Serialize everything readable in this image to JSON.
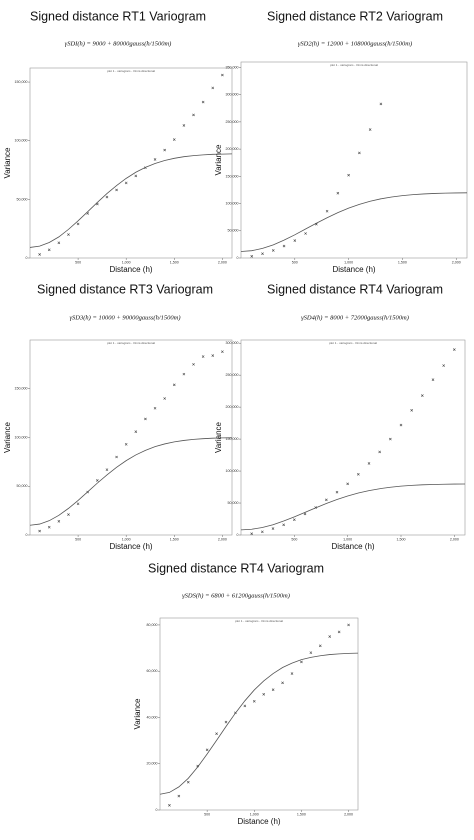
{
  "chart_data": [
    {
      "type": "scatter",
      "title": "Signed distance RT1 Variogram",
      "formula": "γSDI(h) = 9000 + 80000gauss(h/1500m)",
      "subtitle": "plot 1 - variogram - Omni-directional",
      "xlabel": "Distance (h)",
      "ylabel": "Variance",
      "xlim": [
        0,
        2100
      ],
      "ylim": [
        0,
        162000
      ],
      "xticks": [
        500,
        {
          "value": 1000,
          "label": "1,000"
        },
        {
          "value": 1500,
          "label": "1,500"
        },
        {
          "value": 2000,
          "label": "2,000"
        }
      ],
      "yticks": [
        0,
        {
          "value": 50000,
          "label": "50,000"
        },
        {
          "value": 100000,
          "label": "100,000"
        },
        {
          "value": 150000,
          "label": "150,000"
        }
      ],
      "series": [
        {
          "style": "markers",
          "color": "#444444",
          "x": [
            100,
            200,
            300,
            400,
            500,
            600,
            700,
            800,
            900,
            1000,
            1100,
            1200,
            1300,
            1400,
            1500,
            1600,
            1700,
            1800,
            1900,
            2000
          ],
          "values": [
            3000,
            7000,
            13000,
            20000,
            29000,
            38000,
            46000,
            52000,
            58000,
            64000,
            70000,
            77000,
            84000,
            92000,
            101000,
            113000,
            122000,
            133000,
            145000,
            156000
          ]
        },
        {
          "style": "line",
          "color": "#555555",
          "x": [
            0,
            100,
            200,
            300,
            400,
            500,
            600,
            700,
            800,
            900,
            1000,
            1100,
            1200,
            1300,
            1400,
            1500,
            1600,
            1700,
            1800,
            1900,
            2000,
            2100
          ],
          "values": [
            9000,
            10100,
            13200,
            18000,
            24400,
            31700,
            39500,
            47400,
            54900,
            61800,
            67900,
            73100,
            77300,
            80600,
            83100,
            85000,
            86400,
            87300,
            87900,
            88400,
            88600,
            88800
          ]
        }
      ]
    },
    {
      "type": "scatter",
      "title": "Signed distance RT2 Variogram",
      "formula": "γSD2(h) = 12000 + 108000gauss(h/1500m)",
      "subtitle": "plot 1 - variogram - Omni-directional",
      "xlabel": "Distance (h)",
      "ylabel": "Variance",
      "xlim": [
        0,
        2100
      ],
      "ylim": [
        0,
        360000
      ],
      "xticks": [
        500,
        {
          "value": 1000,
          "label": "1,000"
        },
        {
          "value": 1500,
          "label": "1,500"
        },
        {
          "value": 2000,
          "label": "2,000"
        }
      ],
      "yticks": [
        0,
        {
          "value": 50000,
          "label": "50,000"
        },
        {
          "value": 100000,
          "label": "100,000"
        },
        {
          "value": 150000,
          "label": "150,000"
        },
        {
          "value": 200000,
          "label": "200,000"
        },
        {
          "value": 250000,
          "label": "250,000"
        },
        {
          "value": 300000,
          "label": "300,000"
        },
        {
          "value": 350000,
          "label": "350,000"
        }
      ],
      "series": [
        {
          "style": "markers",
          "color": "#444444",
          "x": [
            100,
            200,
            300,
            400,
            500,
            600,
            700,
            800,
            900,
            1000,
            1100,
            1200,
            1300
          ],
          "values": [
            3000,
            8000,
            14000,
            22000,
            32000,
            45000,
            62000,
            86000,
            119000,
            152000,
            193000,
            236000,
            283000
          ]
        },
        {
          "style": "line",
          "color": "#555555",
          "x": [
            0,
            100,
            200,
            300,
            400,
            500,
            600,
            700,
            800,
            900,
            1000,
            1100,
            1200,
            1300,
            1400,
            1500,
            1600,
            1700,
            1800,
            1900,
            2000,
            2100
          ],
          "values": [
            12000,
            13400,
            17600,
            24200,
            32800,
            42600,
            53200,
            63800,
            74000,
            83300,
            91500,
            98500,
            104200,
            108700,
            112100,
            114600,
            116400,
            117700,
            118600,
            119100,
            119500,
            119700
          ]
        }
      ]
    },
    {
      "type": "scatter",
      "title": "Signed distance RT3 Variogram",
      "formula": "γSD3(h) = 10000 + 90000gauss(h/1500m)",
      "subtitle": "plot 1 - variogram - Omni-directional",
      "xlabel": "Distance (h)",
      "ylabel": "Variance",
      "xlim": [
        0,
        2100
      ],
      "ylim": [
        0,
        200000
      ],
      "xticks": [
        500,
        {
          "value": 1000,
          "label": "1,000"
        },
        {
          "value": 1500,
          "label": "1,500"
        },
        {
          "value": 2000,
          "label": "2,000"
        }
      ],
      "yticks": [
        0,
        {
          "value": 50000,
          "label": "50,000"
        },
        {
          "value": 100000,
          "label": "100,000"
        },
        {
          "value": 150000,
          "label": "150,000"
        }
      ],
      "series": [
        {
          "style": "markers",
          "color": "#444444",
          "x": [
            100,
            200,
            300,
            400,
            500,
            600,
            700,
            800,
            900,
            1000,
            1100,
            1200,
            1300,
            1400,
            1500,
            1600,
            1700,
            1800,
            1900,
            2000
          ],
          "values": [
            4000,
            8000,
            14000,
            21000,
            32000,
            44000,
            56000,
            67000,
            80000,
            93000,
            106000,
            119000,
            130000,
            140000,
            154000,
            165000,
            175000,
            183000,
            184000,
            188000
          ]
        },
        {
          "style": "line",
          "color": "#555555",
          "x": [
            0,
            100,
            200,
            300,
            400,
            500,
            600,
            700,
            800,
            900,
            1000,
            1100,
            1200,
            1300,
            1400,
            1500,
            1600,
            1700,
            1800,
            1900,
            2000,
            2100
          ],
          "values": [
            10000,
            11200,
            14700,
            20200,
            27300,
            35500,
            44300,
            53200,
            61600,
            69400,
            76300,
            82100,
            86800,
            90600,
            93400,
            95500,
            97000,
            98100,
            98800,
            99300,
            99600,
            99700
          ]
        }
      ]
    },
    {
      "type": "scatter",
      "title": "Signed distance RT4 Variogram",
      "formula": "γSD4(h) = 8000 + 72000gauss(h/1500m)",
      "subtitle": "plot 1 - variogram - Omni-directional",
      "xlabel": "Distance (h)",
      "ylabel": "Variance",
      "xlim": [
        0,
        2100
      ],
      "ylim": [
        0,
        305000
      ],
      "xticks": [
        500,
        {
          "value": 1000,
          "label": "1,000"
        },
        {
          "value": 1500,
          "label": "1,500"
        },
        {
          "value": 2000,
          "label": "2,000"
        }
      ],
      "yticks": [
        0,
        {
          "value": 50000,
          "label": "50,000"
        },
        {
          "value": 100000,
          "label": "100,000"
        },
        {
          "value": 150000,
          "label": "150,000"
        },
        {
          "value": 200000,
          "label": "200,000"
        },
        {
          "value": 250000,
          "label": "250,000"
        },
        {
          "value": 300000,
          "label": "300,000"
        }
      ],
      "series": [
        {
          "style": "markers",
          "color": "#444444",
          "x": [
            100,
            200,
            300,
            400,
            500,
            600,
            700,
            800,
            900,
            1000,
            1100,
            1200,
            1300,
            1400,
            1500,
            1600,
            1700,
            1800,
            1900,
            2000
          ],
          "values": [
            2000,
            5000,
            10000,
            16000,
            24000,
            33000,
            43000,
            55000,
            67000,
            80000,
            95000,
            112000,
            130000,
            150000,
            172000,
            195000,
            218000,
            243000,
            265000,
            290000
          ]
        },
        {
          "style": "line",
          "color": "#555555",
          "x": [
            0,
            100,
            200,
            300,
            400,
            500,
            600,
            700,
            800,
            900,
            1000,
            1100,
            1200,
            1300,
            1400,
            1500,
            1600,
            1700,
            1800,
            1900,
            2000,
            2100
          ],
          "values": [
            8000,
            9000,
            11700,
            16100,
            21900,
            28400,
            35400,
            42500,
            49300,
            55500,
            61000,
            65700,
            69400,
            72400,
            74700,
            76400,
            77600,
            78500,
            79000,
            79400,
            79700,
            79800
          ]
        }
      ]
    },
    {
      "type": "scatter",
      "title": "Signed distance RT4 Variogram",
      "formula": "γSDS(h) = 6800 + 61200gauss(h/1500m)",
      "subtitle": "plot 1 - variogram - Omni-directional",
      "xlabel": "Distance (h)",
      "ylabel": "Variance",
      "xlim": [
        0,
        2100
      ],
      "ylim": [
        0,
        83000
      ],
      "xticks": [
        500,
        {
          "value": 1000,
          "label": "1,000"
        },
        {
          "value": 1500,
          "label": "1,500"
        },
        {
          "value": 2000,
          "label": "2,000"
        }
      ],
      "yticks": [
        0,
        {
          "value": 20000,
          "label": "20,000"
        },
        {
          "value": 40000,
          "label": "40,000"
        },
        {
          "value": 60000,
          "label": "60,000"
        },
        {
          "value": 80000,
          "label": "80,000"
        }
      ],
      "series": [
        {
          "style": "markers",
          "color": "#444444",
          "x": [
            100,
            200,
            300,
            400,
            500,
            600,
            700,
            800,
            900,
            1000,
            1100,
            1200,
            1300,
            1400,
            1500,
            1600,
            1700,
            1800,
            1900,
            2000
          ],
          "values": [
            2000,
            6000,
            12000,
            19000,
            26000,
            33000,
            38000,
            42000,
            45000,
            47000,
            50000,
            52000,
            55000,
            59000,
            64000,
            68000,
            71000,
            75000,
            77000,
            80000
          ]
        },
        {
          "style": "line",
          "color": "#555555",
          "x": [
            0,
            100,
            200,
            300,
            400,
            500,
            600,
            700,
            800,
            900,
            1000,
            1100,
            1200,
            1300,
            1400,
            1500,
            1600,
            1700,
            1800,
            1900,
            2000,
            2100
          ],
          "values": [
            6800,
            7600,
            10000,
            13700,
            18600,
            24200,
            30100,
            36100,
            41900,
            47200,
            51900,
            55800,
            59000,
            61600,
            63500,
            65000,
            66000,
            66700,
            67200,
            67500,
            67700,
            67800
          ]
        }
      ]
    }
  ]
}
